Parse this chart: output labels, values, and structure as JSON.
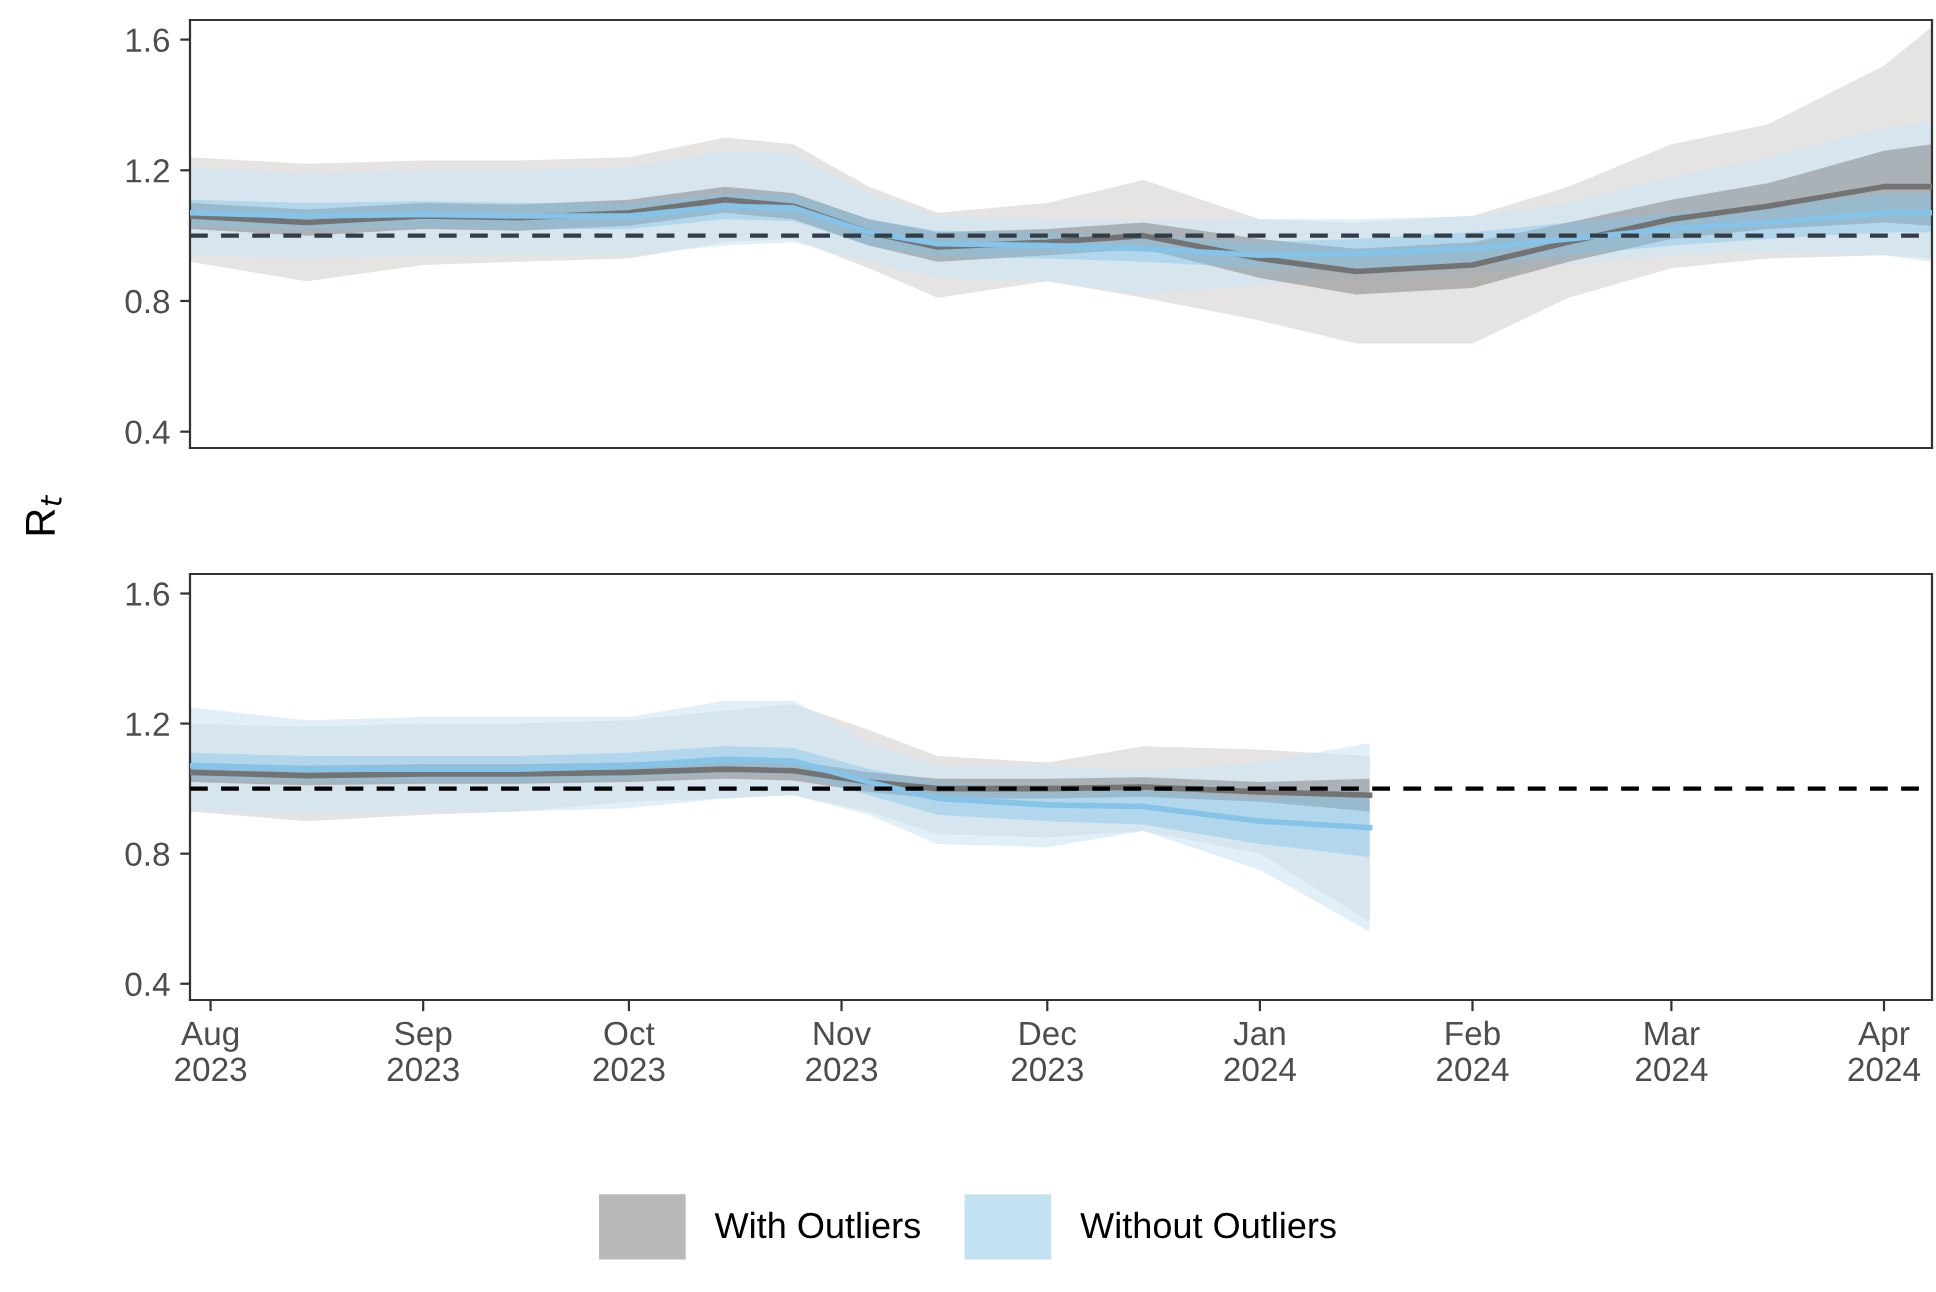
{
  "chart_data": [
    {
      "type": "line",
      "ylabel": "R$_{t}$",
      "legend": "bottom",
      "tick_labels": "y",
      "xlim": [
        "2023-07-29",
        "2024-04-08"
      ],
      "ylim": [
        0.35,
        1.66
      ],
      "yticks": [
        0.4,
        0.8,
        1.2,
        1.6
      ],
      "xticks": [
        {
          "value": "2023-08-01",
          "label": null
        },
        {
          "value": "2023-09-01",
          "label": null
        },
        {
          "value": "2023-10-01",
          "label": null
        },
        {
          "value": "2023-11-01",
          "label": null
        },
        {
          "value": "2023-12-01",
          "label": null
        },
        {
          "value": "2024-01-01",
          "label": null
        },
        {
          "value": "2024-02-01",
          "label": null
        },
        {
          "value": "2024-03-01",
          "label": null
        },
        {
          "value": "2024-04-01",
          "label": null
        }
      ],
      "ref_lines": [
        {
          "axis": "y",
          "value": 1,
          "color": "#333d47",
          "line_style": "dashed"
        }
      ],
      "series": [
        {
          "color": "#d9d6d3",
          "x": [
            "2023-07-29",
            "2023-08-15",
            "2023-09-01",
            "2023-09-15",
            "2023-10-01",
            "2023-10-15",
            "2023-10-25",
            "2023-11-05",
            "2023-11-15",
            "2023-12-01",
            "2023-12-15",
            "2024-01-01",
            "2024-01-15",
            "2024-02-01",
            "2024-02-15",
            "2024-03-01",
            "2024-03-15",
            "2024-04-01",
            "2024-04-08"
          ],
          "values": [
            null,
            null,
            null,
            null,
            null,
            null,
            null,
            null,
            null,
            null,
            null,
            null,
            null,
            null,
            null,
            null,
            null,
            null,
            null
          ],
          "upper": [
            1.24,
            1.22,
            1.23,
            1.23,
            1.24,
            1.3,
            1.28,
            1.15,
            1.07,
            1.1,
            1.17,
            1.05,
            1.04,
            1.06,
            1.15,
            1.28,
            1.34,
            1.52,
            1.64
          ],
          "lower": [
            0.92,
            0.86,
            0.91,
            0.92,
            0.93,
            0.98,
            0.99,
            0.9,
            0.81,
            0.86,
            0.81,
            0.74,
            0.67,
            0.67,
            0.81,
            0.9,
            0.93,
            0.94,
            0.93
          ]
        },
        {
          "color": "#cfe6f4",
          "x": [
            "2023-07-29",
            "2023-08-15",
            "2023-09-01",
            "2023-09-15",
            "2023-10-01",
            "2023-10-15",
            "2023-10-25",
            "2023-11-05",
            "2023-11-15",
            "2023-12-01",
            "2023-12-15",
            "2024-01-01",
            "2024-01-15",
            "2024-02-01",
            "2024-02-15",
            "2024-03-01",
            "2024-03-15",
            "2024-04-01",
            "2024-04-08"
          ],
          "values": [
            null,
            null,
            null,
            null,
            null,
            null,
            null,
            null,
            null,
            null,
            null,
            null,
            null,
            null,
            null,
            null,
            null,
            null,
            null
          ],
          "upper": [
            1.21,
            1.19,
            1.2,
            1.2,
            1.21,
            1.26,
            1.25,
            1.13,
            1.06,
            1.05,
            1.05,
            1.05,
            1.05,
            1.06,
            1.1,
            1.18,
            1.24,
            1.33,
            1.35
          ],
          "lower": [
            0.94,
            0.93,
            0.94,
            0.94,
            0.94,
            0.97,
            0.98,
            0.92,
            0.87,
            0.86,
            0.82,
            0.85,
            0.87,
            0.88,
            0.91,
            0.94,
            0.95,
            0.94,
            0.92
          ]
        },
        {
          "name": "With Outliers",
          "color": "#737373",
          "x": [
            "2023-07-29",
            "2023-08-15",
            "2023-09-01",
            "2023-09-15",
            "2023-10-01",
            "2023-10-15",
            "2023-10-25",
            "2023-11-05",
            "2023-11-15",
            "2023-12-01",
            "2023-12-15",
            "2024-01-01",
            "2024-01-15",
            "2024-02-01",
            "2024-02-15",
            "2024-03-01",
            "2024-03-15",
            "2024-04-01",
            "2024-04-08"
          ],
          "values": [
            1.06,
            1.04,
            1.06,
            1.055,
            1.07,
            1.11,
            1.09,
            1.01,
            0.965,
            0.98,
            1.0,
            0.93,
            0.89,
            0.91,
            0.98,
            1.05,
            1.09,
            1.15,
            1.15
          ],
          "lower": [
            1.02,
            1.0,
            1.02,
            1.015,
            1.03,
            1.07,
            1.05,
            0.97,
            0.92,
            0.94,
            0.96,
            0.87,
            0.82,
            0.84,
            0.92,
            0.99,
            1.02,
            1.04,
            1.03
          ],
          "upper": [
            1.1,
            1.08,
            1.1,
            1.095,
            1.11,
            1.15,
            1.13,
            1.05,
            1.01,
            1.02,
            1.04,
            0.99,
            0.96,
            0.98,
            1.04,
            1.11,
            1.16,
            1.26,
            1.28
          ]
        },
        {
          "name": "Without Outliers",
          "color": "#85c4e8",
          "x": [
            "2023-07-29",
            "2023-08-15",
            "2023-09-01",
            "2023-09-15",
            "2023-10-01",
            "2023-10-15",
            "2023-10-25",
            "2023-11-05",
            "2023-11-15",
            "2023-12-01",
            "2023-12-15",
            "2024-01-01",
            "2024-01-15",
            "2024-02-01",
            "2024-02-15",
            "2024-03-01",
            "2024-03-15",
            "2024-04-01",
            "2024-04-08"
          ],
          "values": [
            1.07,
            1.06,
            1.065,
            1.06,
            1.06,
            1.09,
            1.085,
            1.01,
            0.975,
            0.97,
            0.96,
            0.94,
            0.945,
            0.96,
            0.99,
            1.02,
            1.04,
            1.07,
            1.07
          ],
          "lower": [
            1.03,
            1.02,
            1.025,
            1.02,
            1.02,
            1.05,
            1.045,
            0.97,
            0.935,
            0.93,
            0.92,
            0.9,
            0.9,
            0.91,
            0.94,
            0.97,
            0.99,
            1.01,
            1.01
          ],
          "upper": [
            1.11,
            1.1,
            1.105,
            1.1,
            1.1,
            1.13,
            1.125,
            1.05,
            1.015,
            1.01,
            1.0,
            0.98,
            0.99,
            1.01,
            1.04,
            1.07,
            1.09,
            1.13,
            1.13
          ]
        }
      ]
    },
    {
      "type": "line",
      "legend": "bottom",
      "xlim": [
        "2023-07-29",
        "2024-04-08"
      ],
      "ylim": [
        0.35,
        1.66
      ],
      "yticks": [
        0.4,
        0.8,
        1.2,
        1.6
      ],
      "xticks": [
        {
          "value": "2023-08-01",
          "label": "Aug\n2023"
        },
        {
          "value": "2023-09-01",
          "label": "Sep\n2023"
        },
        {
          "value": "2023-10-01",
          "label": "Oct\n2023"
        },
        {
          "value": "2023-11-01",
          "label": "Nov\n2023"
        },
        {
          "value": "2023-12-01",
          "label": "Dec\n2023"
        },
        {
          "value": "2024-01-01",
          "label": "Jan\n2024"
        },
        {
          "value": "2024-02-01",
          "label": "Feb\n2024"
        },
        {
          "value": "2024-03-01",
          "label": "Mar\n2024"
        },
        {
          "value": "2024-04-01",
          "label": "Apr\n2024"
        }
      ],
      "ref_lines": [
        {
          "axis": "y",
          "value": 1,
          "color": "#000000",
          "line_style": "dashed"
        }
      ],
      "series": [
        {
          "color": "#d9d6d3",
          "x": [
            "2023-07-29",
            "2023-08-15",
            "2023-09-01",
            "2023-09-15",
            "2023-10-01",
            "2023-10-15",
            "2023-10-25",
            "2023-11-05",
            "2023-11-15",
            "2023-12-01",
            "2023-12-15",
            "2024-01-01",
            "2024-01-17"
          ],
          "values": [
            null,
            null,
            null,
            null,
            null,
            null,
            null,
            null,
            null,
            null,
            null,
            null,
            null
          ],
          "upper": [
            1.2,
            1.19,
            1.2,
            1.2,
            1.21,
            1.24,
            1.26,
            1.18,
            1.1,
            1.08,
            1.13,
            1.12,
            1.1
          ],
          "lower": [
            0.93,
            0.9,
            0.92,
            0.93,
            0.96,
            0.97,
            0.98,
            0.93,
            0.86,
            0.85,
            0.87,
            0.8,
            0.59
          ]
        },
        {
          "color": "#cfe6f4",
          "x": [
            "2023-07-29",
            "2023-08-15",
            "2023-09-01",
            "2023-09-15",
            "2023-10-01",
            "2023-10-15",
            "2023-10-25",
            "2023-11-05",
            "2023-11-15",
            "2023-12-01",
            "2023-12-15",
            "2024-01-01",
            "2024-01-17"
          ],
          "values": [
            null,
            null,
            null,
            null,
            null,
            null,
            null,
            null,
            null,
            null,
            null,
            null,
            null
          ],
          "upper": [
            1.25,
            1.21,
            1.22,
            1.22,
            1.22,
            1.27,
            1.27,
            1.14,
            1.07,
            1.07,
            1.055,
            1.08,
            1.14
          ],
          "lower": [
            0.93,
            0.93,
            0.93,
            0.93,
            0.94,
            0.97,
            0.98,
            0.92,
            0.83,
            0.82,
            0.87,
            0.75,
            0.56
          ]
        },
        {
          "name": "With Outliers",
          "color": "#737373",
          "x": [
            "2023-07-29",
            "2023-08-15",
            "2023-09-01",
            "2023-09-15",
            "2023-10-01",
            "2023-10-15",
            "2023-10-25",
            "2023-11-05",
            "2023-11-15",
            "2023-12-01",
            "2023-12-15",
            "2024-01-01",
            "2024-01-17"
          ],
          "values": [
            1.05,
            1.04,
            1.045,
            1.045,
            1.05,
            1.06,
            1.055,
            1.02,
            1.0,
            1.0,
            1.005,
            0.99,
            0.98
          ],
          "lower": [
            1.02,
            1.01,
            1.015,
            1.015,
            1.02,
            1.03,
            1.025,
            0.99,
            0.97,
            0.97,
            0.975,
            0.96,
            0.93
          ],
          "upper": [
            1.08,
            1.07,
            1.075,
            1.075,
            1.08,
            1.09,
            1.085,
            1.05,
            1.03,
            1.03,
            1.035,
            1.02,
            1.03
          ]
        },
        {
          "name": "Without Outliers",
          "color": "#85c4e8",
          "x": [
            "2023-07-29",
            "2023-08-15",
            "2023-09-01",
            "2023-09-15",
            "2023-10-01",
            "2023-10-15",
            "2023-10-25",
            "2023-11-05",
            "2023-11-15",
            "2023-12-01",
            "2023-12-15",
            "2024-01-01",
            "2024-01-17"
          ],
          "values": [
            1.07,
            1.06,
            1.06,
            1.06,
            1.07,
            1.09,
            1.085,
            1.02,
            0.97,
            0.95,
            0.945,
            0.9,
            0.88
          ],
          "lower": [
            1.03,
            1.02,
            1.02,
            1.02,
            1.03,
            1.05,
            1.045,
            0.98,
            0.92,
            0.9,
            0.89,
            0.83,
            0.79
          ],
          "upper": [
            1.11,
            1.1,
            1.1,
            1.1,
            1.11,
            1.13,
            1.125,
            1.06,
            1.02,
            1.0,
            1.0,
            0.97,
            0.99
          ]
        }
      ]
    }
  ]
}
